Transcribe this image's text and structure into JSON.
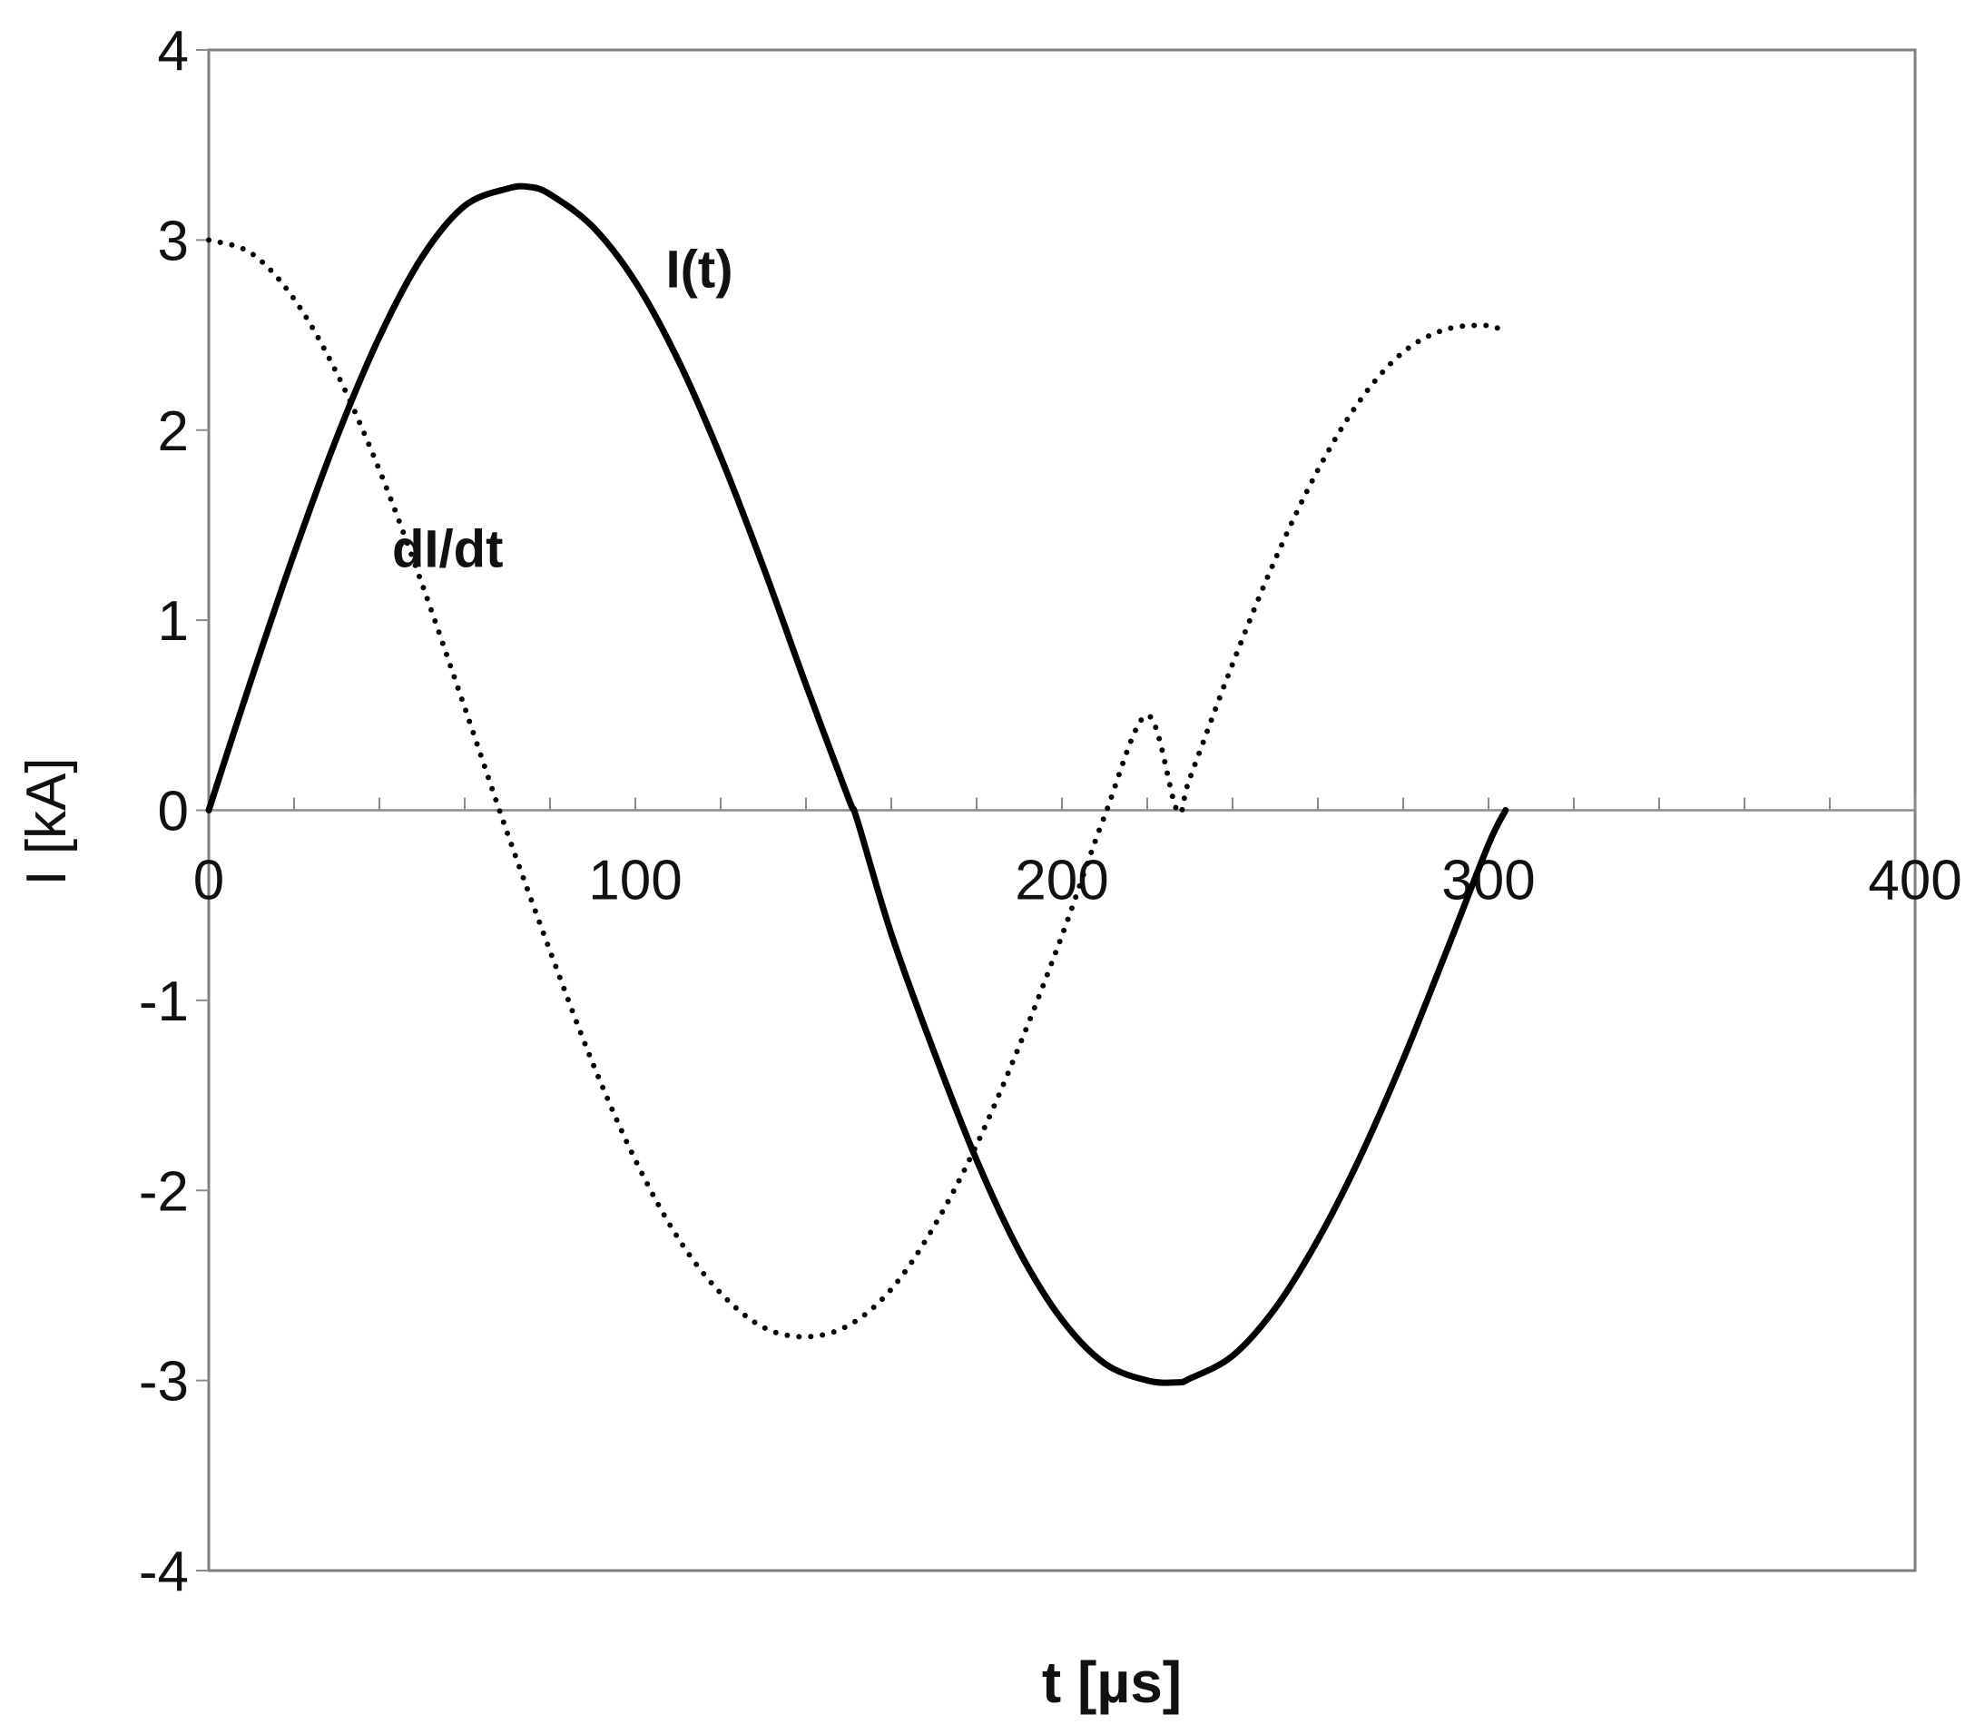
{
  "chart_data": {
    "type": "line",
    "xlabel": "t [µs]",
    "ylabel": "I [kA]",
    "xlim": [
      0,
      400
    ],
    "ylim": [
      -4,
      4
    ],
    "xticks": [
      "0",
      "100",
      "200",
      "300",
      "400"
    ],
    "yticks": [
      "4",
      "3",
      "2",
      "1",
      "0",
      "-1",
      "-2",
      "-3",
      "-4"
    ],
    "grid": false,
    "legend": "none",
    "colors": {
      "line": "#000000",
      "frame": "#7f7f7f",
      "axis": "#8c8c8c"
    },
    "series": [
      {
        "name": "I(t)",
        "style": "solid",
        "x": [
          0,
          10,
          20,
          30,
          40,
          50,
          60,
          70,
          75,
          80,
          90,
          100,
          110,
          120,
          130,
          140,
          150,
          152,
          160,
          170,
          180,
          190,
          200,
          210,
          220,
          227,
          230,
          240,
          250,
          260,
          270,
          280,
          290,
          300,
          304
        ],
        "y": [
          0.0,
          0.69,
          1.35,
          1.96,
          2.49,
          2.91,
          3.18,
          3.27,
          3.28,
          3.24,
          3.07,
          2.78,
          2.37,
          1.86,
          1.28,
          0.66,
          0.06,
          -0.05,
          -0.65,
          -1.27,
          -1.84,
          -2.32,
          -2.68,
          -2.91,
          -3.0,
          -3.01,
          -2.99,
          -2.87,
          -2.62,
          -2.26,
          -1.82,
          -1.31,
          -0.75,
          -0.18,
          0.0
        ]
      },
      {
        "name": "dI/dt",
        "style": "dotted",
        "x": [
          0,
          10,
          20,
          30,
          40,
          50,
          60,
          70,
          80,
          90,
          100,
          110,
          120,
          130,
          140,
          150,
          160,
          170,
          180,
          190,
          200,
          210,
          220,
          227,
          230,
          240,
          250,
          260,
          270,
          280,
          290,
          300,
          303
        ],
        "y": [
          3.0,
          2.93,
          2.69,
          2.3,
          1.79,
          1.19,
          0.54,
          -0.12,
          -0.74,
          -1.33,
          -1.84,
          -2.25,
          -2.54,
          -2.72,
          -2.77,
          -2.71,
          -2.52,
          -2.19,
          -1.76,
          -1.24,
          -0.66,
          -0.03,
          0.5,
          0.0,
          0.17,
          0.77,
          1.32,
          1.79,
          2.16,
          2.41,
          2.53,
          2.55,
          2.52
        ]
      }
    ],
    "annotations": [
      {
        "text": "I(t)",
        "x": 115,
        "y": 2.75
      },
      {
        "text": "dI/dt",
        "x": 56,
        "y": 1.28
      }
    ]
  }
}
